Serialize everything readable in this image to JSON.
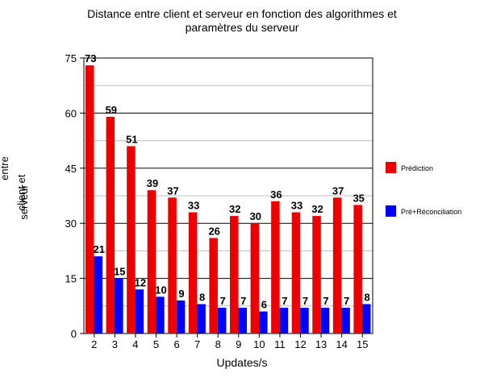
{
  "chart_data": {
    "type": "bar",
    "title_lines": [
      "Distance entre client et serveur en fonction des algorithmes et",
      "paramètres du serveur"
    ],
    "xlabel": "Updates/s",
    "ylabel_lines": [
      "Distance",
      "entre",
      "client et",
      "serveur"
    ],
    "categories": [
      "2",
      "3",
      "4",
      "5",
      "6",
      "7",
      "8",
      "9",
      "10",
      "11",
      "12",
      "13",
      "14",
      "15"
    ],
    "series": [
      {
        "name": "Prédiction",
        "color": "#ee0000",
        "values": [
          73,
          59,
          51,
          39,
          37,
          33,
          26,
          32,
          30,
          36,
          33,
          32,
          37,
          35
        ]
      },
      {
        "name": "Pré+Réconciliation",
        "color": "#0000ff",
        "values": [
          21,
          15,
          12,
          10,
          9,
          8,
          7,
          7,
          6,
          7,
          7,
          7,
          7,
          8
        ]
      }
    ],
    "ylim": [
      0,
      75
    ],
    "yticks": [
      0,
      15,
      30,
      45,
      60,
      75
    ],
    "grid": true,
    "legend_position": "right"
  }
}
